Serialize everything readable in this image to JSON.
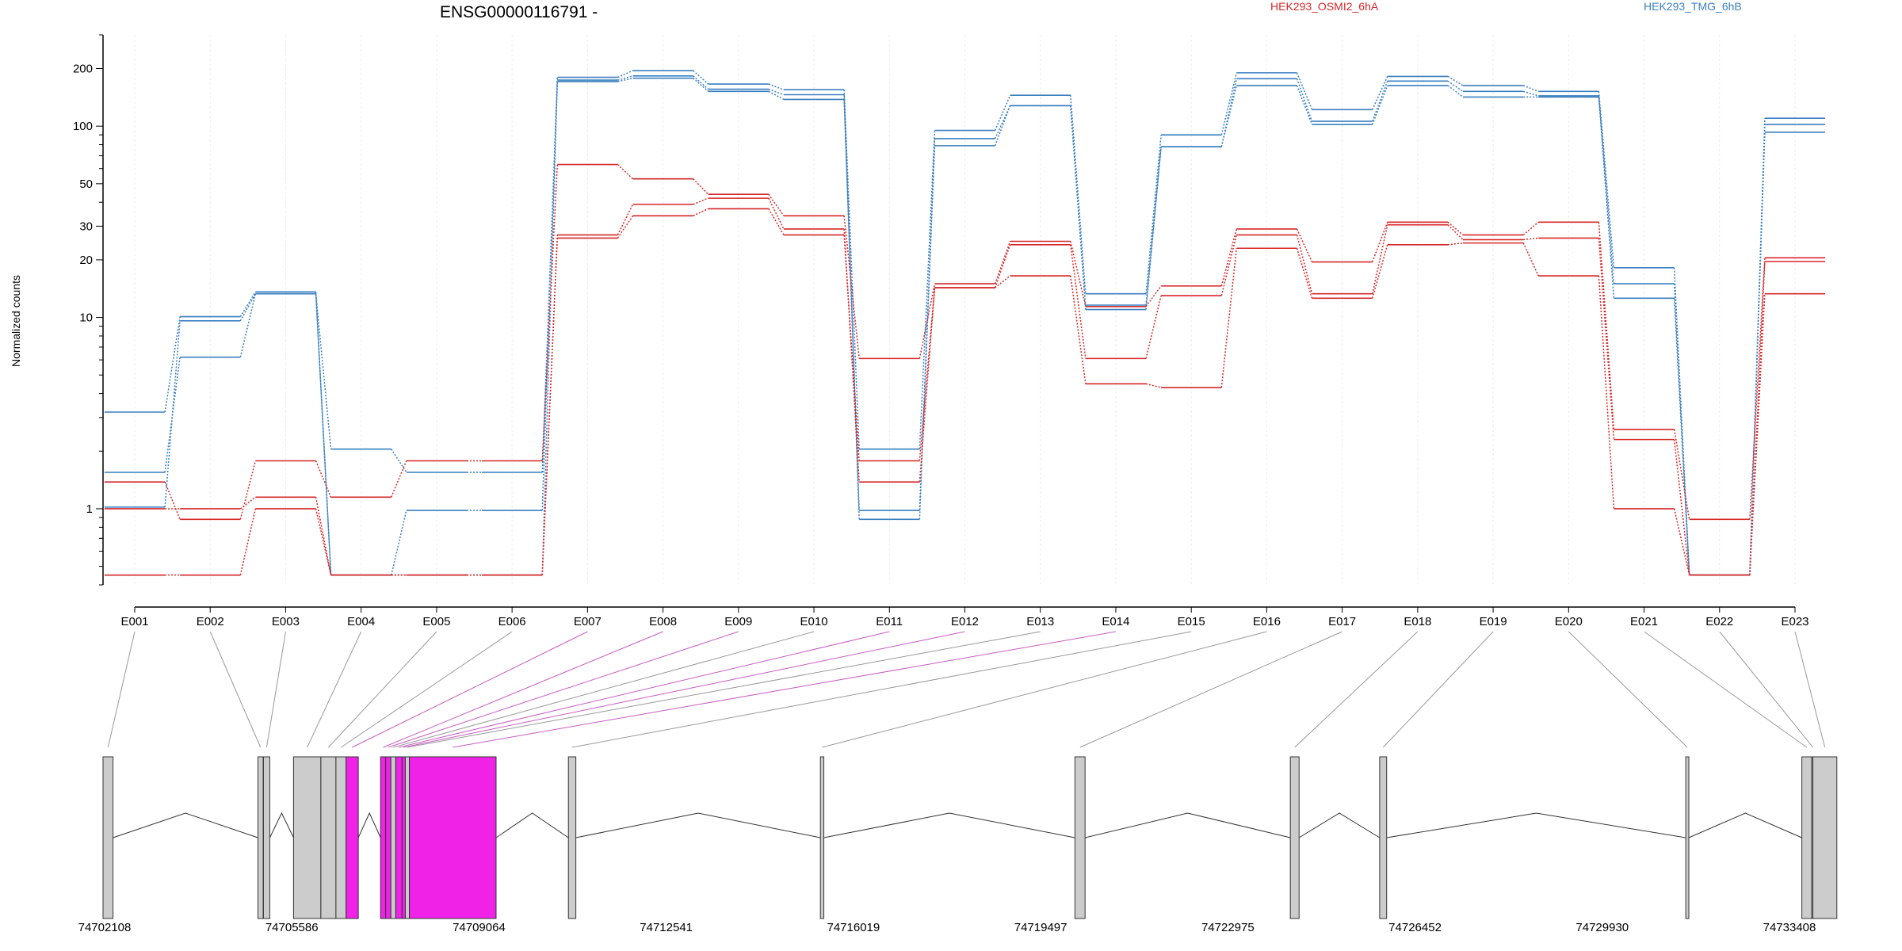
{
  "chart_data": {
    "type": "line",
    "title": "ENSG00000116791 -",
    "ylabel": "Normalized counts",
    "xlabel": "",
    "y_scale": "log",
    "ylim": [
      0.4,
      300
    ],
    "y_ticks": [
      1,
      10,
      20,
      30,
      50,
      100,
      200
    ],
    "grid": "x",
    "legend_position": "top",
    "categories": [
      "E001",
      "E002",
      "E003",
      "E004",
      "E005",
      "E006",
      "E007",
      "E008",
      "E009",
      "E010",
      "E011",
      "E012",
      "E013",
      "E014",
      "E015",
      "E016",
      "E017",
      "E018",
      "E019",
      "E020",
      "E021",
      "E022",
      "E023"
    ],
    "legend": [
      {
        "label": "HEK293_OSMI2_6hA",
        "color": "#d62728"
      },
      {
        "label": "HEK293_TMG_6hB",
        "color": "#3a7fc1"
      }
    ],
    "series": [
      {
        "group": "HEK293_TMG_6hB",
        "color": "#3a7fc1",
        "values": [
          1.55,
          6.2,
          13.3,
          2.05,
          1.55,
          1.55,
          180,
          195,
          166,
          155,
          2.05,
          95,
          145,
          13.3,
          90,
          190,
          122,
          182,
          163,
          152,
          18.2,
          0.45,
          110
        ]
      },
      {
        "group": "HEK293_TMG_6hB",
        "color": "#3a7fc1",
        "values": [
          3.2,
          10.1,
          13.6,
          0.45,
          0.98,
          0.98,
          174,
          183,
          156,
          146,
          0.98,
          86,
          128,
          11.6,
          78,
          177,
          106,
          172,
          152,
          144,
          15,
          0.45,
          102
        ]
      },
      {
        "group": "HEK293_TMG_6hB",
        "color": "#3a7fc1",
        "values": [
          1.02,
          9.6,
          13.3,
          0.45,
          0.45,
          0.45,
          171,
          178,
          152,
          138,
          0.88,
          79,
          128,
          11,
          78,
          163,
          102,
          163,
          142,
          142,
          12.6,
          0.45,
          93
        ]
      },
      {
        "group": "HEK293_OSMI2_6hA",
        "color": "#d62728",
        "values": [
          1.38,
          0.88,
          1.78,
          1.15,
          1.78,
          1.78,
          63,
          53,
          44,
          34,
          6.1,
          15,
          25,
          11.4,
          14.6,
          29,
          19.5,
          31.5,
          27,
          31.5,
          2.6,
          0.88,
          20.5
        ]
      },
      {
        "group": "HEK293_OSMI2_6hA",
        "color": "#d62728",
        "values": [
          1,
          1,
          1.15,
          0.45,
          0.45,
          0.45,
          27,
          39,
          42,
          29,
          1.38,
          14.3,
          24,
          6.1,
          13,
          27,
          13.3,
          30.5,
          25.5,
          26,
          2.3,
          0.45,
          19.6
        ]
      },
      {
        "group": "HEK293_OSMI2_6hA",
        "color": "#d62728",
        "values": [
          0.45,
          0.45,
          1,
          0.45,
          0.45,
          0.45,
          26,
          34,
          37,
          27,
          1.78,
          14.3,
          16.5,
          4.5,
          4.3,
          23,
          12.6,
          24,
          24.5,
          16.5,
          1,
          0.45,
          13.3
        ]
      }
    ],
    "gene_model": {
      "axis_labels": [
        "74702108",
        "74705586",
        "74709064",
        "74712541",
        "74716019",
        "74719497",
        "74722975",
        "74726452",
        "74729930",
        "74733408"
      ],
      "exon_colors": {
        "default": "#cccccc",
        "highlight": "#f022e8"
      },
      "exon_mapping_colors": {
        "default": "#999999",
        "highlight": "#c75cc2"
      },
      "exons": [
        {
          "id": "E001",
          "start": 74702108,
          "end": 74702289,
          "highlight": false
        },
        {
          "id": "E002",
          "start": 74704914,
          "end": 74705009,
          "highlight": false
        },
        {
          "id": "E003",
          "start": 74705014,
          "end": 74705129,
          "highlight": false
        },
        {
          "id": "E004",
          "start": 74705559,
          "end": 74706054,
          "highlight": false
        },
        {
          "id": "E005",
          "start": 74706054,
          "end": 74706327,
          "highlight": false
        },
        {
          "id": "E006",
          "start": 74706327,
          "end": 74706511,
          "highlight": false
        },
        {
          "id": "E007",
          "start": 74706511,
          "end": 74706732,
          "highlight": true
        },
        {
          "id": "E008",
          "start": 74707136,
          "end": 74707229,
          "highlight": true
        },
        {
          "id": "E009",
          "start": 74707229,
          "end": 74707322,
          "highlight": true
        },
        {
          "id": "E010",
          "start": 74707322,
          "end": 74707410,
          "highlight": false
        },
        {
          "id": "E011",
          "start": 74707410,
          "end": 74707524,
          "highlight": true
        },
        {
          "id": "E012",
          "start": 74707524,
          "end": 74707584,
          "highlight": true
        },
        {
          "id": "E013",
          "start": 74707584,
          "end": 74707657,
          "highlight": false
        },
        {
          "id": "E014",
          "start": 74707657,
          "end": 74709228,
          "highlight": true
        },
        {
          "id": "E015",
          "start": 74710538,
          "end": 74710673,
          "highlight": false
        },
        {
          "id": "E016",
          "start": 74715103,
          "end": 74715165,
          "highlight": false
        },
        {
          "id": "E017",
          "start": 74719713,
          "end": 74719897,
          "highlight": false
        },
        {
          "id": "E018",
          "start": 74723615,
          "end": 74723774,
          "highlight": false
        },
        {
          "id": "E019",
          "start": 74725233,
          "end": 74725360,
          "highlight": false
        },
        {
          "id": "E020",
          "start": 74730778,
          "end": 74730834,
          "highlight": false
        },
        {
          "id": "E021",
          "start": 74732881,
          "end": 74733060,
          "highlight": false
        },
        {
          "id": "E022",
          "start": 74733060,
          "end": 74733081,
          "highlight": false
        },
        {
          "id": "E023",
          "start": 74733081,
          "end": 74733515,
          "highlight": false
        }
      ]
    }
  }
}
